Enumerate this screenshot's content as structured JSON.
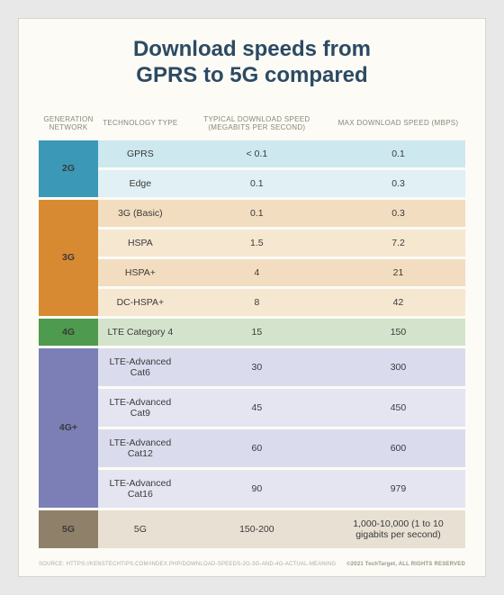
{
  "title": "Download speeds from\nGPRS to 5G compared",
  "columns": [
    "GENERATION NETWORK",
    "TECHNOLOGY TYPE",
    "TYPICAL DOWNLOAD SPEED (MEGABITS PER SECOND)",
    "MAX DOWNLOAD SPEED (MBPS)"
  ],
  "groups": [
    {
      "label": "2G",
      "header_bg": "#3b98b7",
      "row_colors": [
        "#cde8ef",
        "#e0f0f4"
      ],
      "rows": [
        {
          "tech": "GPRS",
          "typical": "< 0.1",
          "max": "0.1"
        },
        {
          "tech": "Edge",
          "typical": "0.1",
          "max": "0.3"
        }
      ]
    },
    {
      "label": "3G",
      "header_bg": "#d88a32",
      "row_colors": [
        "#f2ddc0",
        "#f6e7d1",
        "#f2ddc0",
        "#f6e7d1"
      ],
      "rows": [
        {
          "tech": "3G (Basic)",
          "typical": "0.1",
          "max": "0.3"
        },
        {
          "tech": "HSPA",
          "typical": "1.5",
          "max": "7.2"
        },
        {
          "tech": "HSPA+",
          "typical": "4",
          "max": "21"
        },
        {
          "tech": "DC-HSPA+",
          "typical": "8",
          "max": "42"
        }
      ]
    },
    {
      "label": "4G",
      "header_bg": "#4e9a4e",
      "row_colors": [
        "#d4e4cc"
      ],
      "rows": [
        {
          "tech": "LTE Category 4",
          "typical": "15",
          "max": "150"
        }
      ]
    },
    {
      "label": "4G+",
      "header_bg": "#7b7fb5",
      "row_colors": [
        "#dadced",
        "#e4e5f1",
        "#dadced",
        "#e4e5f1"
      ],
      "rows": [
        {
          "tech": "LTE-Advanced Cat6",
          "typical": "30",
          "max": "300"
        },
        {
          "tech": "LTE-Advanced Cat9",
          "typical": "45",
          "max": "450"
        },
        {
          "tech": "LTE-Advanced Cat12",
          "typical": "60",
          "max": "600"
        },
        {
          "tech": "LTE-Advanced Cat16",
          "typical": "90",
          "max": "979"
        }
      ]
    },
    {
      "label": "5G",
      "header_bg": "#8f8069",
      "row_colors": [
        "#e8e1d3"
      ],
      "rows": [
        {
          "tech": "5G",
          "typical": "150-200",
          "max": "1,000-10,000 (1 to 10 gigabits per second)"
        }
      ]
    }
  ],
  "footer_left": "SOURCE: HTTPS://KENSTECHTIPS.COM/INDEX.PHP/DOWNLOAD-SPEEDS-2G-3G-AND-4G-ACTUAL-MEANING",
  "footer_right": "©2021 TechTarget, ALL RIGHTS RESERVED"
}
